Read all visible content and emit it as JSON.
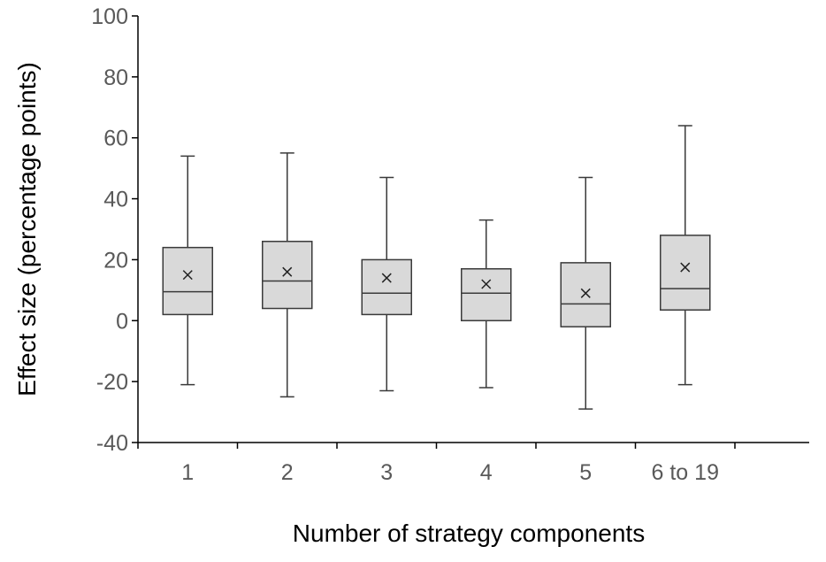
{
  "chart_data": {
    "type": "box",
    "title": "",
    "xlabel": "Number of strategy components",
    "ylabel": "Effect size (percentage points)",
    "ylim": [
      -40,
      100
    ],
    "yticks": [
      -40,
      -20,
      0,
      20,
      40,
      60,
      80,
      100
    ],
    "grid": false,
    "categories": [
      "1",
      "2",
      "3",
      "4",
      "5",
      "6 to 19"
    ],
    "boxes": [
      {
        "category": "1",
        "min": -21,
        "q1": 2,
        "median": 9.5,
        "q3": 24,
        "max": 54,
        "mean": 15
      },
      {
        "category": "2",
        "min": -25,
        "q1": 4,
        "median": 13,
        "q3": 26,
        "max": 55,
        "mean": 16
      },
      {
        "category": "3",
        "min": -23,
        "q1": 2,
        "median": 9,
        "q3": 20,
        "max": 47,
        "mean": 14
      },
      {
        "category": "4",
        "min": -22,
        "q1": 0,
        "median": 9,
        "q3": 17,
        "max": 33,
        "mean": 12
      },
      {
        "category": "5",
        "min": -29,
        "q1": -2,
        "median": 5.5,
        "q3": 19,
        "max": 47,
        "mean": 9
      },
      {
        "category": "6 to 19",
        "min": -21,
        "q1": 3.5,
        "median": 10.5,
        "q3": 28,
        "max": 64,
        "mean": 17.5
      }
    ],
    "colors": {
      "box_fill": "#d9d9d9",
      "box_stroke": "#3a3a3a",
      "axis": "#000000",
      "tick_text": "#595959"
    }
  }
}
